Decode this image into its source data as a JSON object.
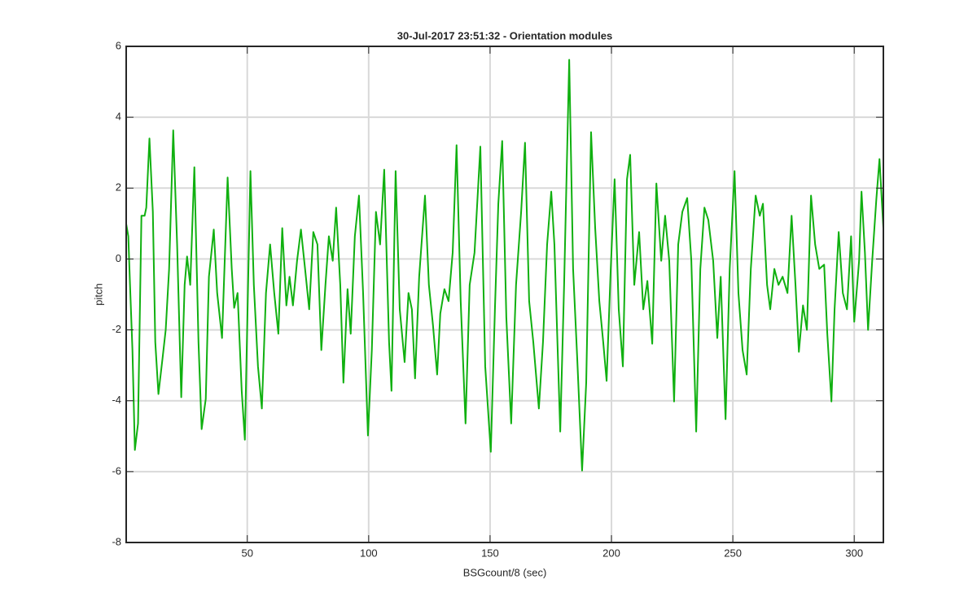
{
  "chart_data": {
    "type": "line",
    "title": "30-Jul-2017 23:51:32 - Orientation modules",
    "x_label": "BSGcount/8 (sec)",
    "y_label": "pitch",
    "xlim": [
      0.125,
      312
    ],
    "ylim": [
      -8,
      6
    ],
    "xticks": [
      50,
      100,
      150,
      200,
      250,
      300
    ],
    "yticks": [
      -8,
      -6,
      -4,
      -2,
      0,
      2,
      4,
      6
    ],
    "grid": true,
    "series": [
      {
        "name": "pitch",
        "color": "#10b010",
        "x": [
          0.125,
          1.0,
          1.7,
          2.7,
          3.7,
          5.0,
          6.4,
          7.7,
          8.4,
          9.7,
          11.1,
          12.1,
          13.4,
          15.1,
          16.4,
          17.8,
          19.5,
          21.1,
          22.8,
          24.2,
          25.2,
          26.5,
          28.2,
          29.9,
          31.2,
          32.9,
          34.2,
          36.2,
          37.6,
          39.6,
          41.9,
          43.6,
          44.6,
          46.0,
          47.7,
          49.0,
          51.3,
          52.7,
          54.4,
          56.0,
          57.7,
          59.4,
          61.1,
          62.8,
          64.4,
          66.1,
          67.4,
          68.8,
          70.5,
          72.1,
          73.8,
          75.5,
          77.2,
          78.9,
          80.5,
          82.2,
          83.6,
          85.2,
          86.6,
          88.3,
          89.6,
          91.3,
          92.6,
          94.3,
          96.0,
          97.7,
          99.7,
          101.3,
          103.0,
          104.7,
          106.4,
          108.4,
          109.4,
          111.1,
          112.8,
          114.8,
          116.4,
          117.8,
          119.1,
          120.8,
          123.2,
          124.8,
          126.5,
          128.2,
          129.5,
          131.2,
          132.9,
          134.6,
          136.2,
          137.9,
          139.9,
          141.6,
          143.6,
          146.0,
          148.0,
          150.3,
          152.0,
          153.4,
          155.0,
          156.7,
          158.7,
          160.7,
          162.8,
          164.4,
          166.1,
          167.8,
          170.1,
          171.8,
          173.5,
          175.2,
          176.5,
          178.9,
          180.5,
          182.6,
          184.2,
          185.9,
          187.9,
          189.6,
          191.6,
          193.3,
          195.0,
          196.6,
          198.0,
          199.7,
          201.3,
          203.0,
          204.7,
          206.4,
          207.7,
          209.4,
          211.4,
          213.1,
          214.8,
          216.8,
          218.5,
          220.5,
          222.1,
          223.8,
          225.8,
          227.5,
          229.2,
          231.2,
          232.9,
          234.9,
          236.6,
          238.3,
          239.9,
          241.9,
          243.6,
          245.0,
          247.0,
          248.7,
          250.7,
          252.3,
          254.0,
          255.7,
          257.4,
          259.4,
          261.1,
          262.4,
          264.1,
          265.4,
          267.1,
          268.8,
          270.5,
          272.5,
          274.2,
          275.8,
          277.2,
          278.9,
          280.5,
          282.2,
          283.9,
          285.6,
          287.6,
          288.9,
          290.6,
          291.9,
          293.6,
          295.3,
          297.0,
          298.7,
          300.0,
          302.0,
          303.0,
          304.4,
          305.7,
          307.4,
          309.1,
          310.4,
          312.0
        ],
        "values": [
          0.99,
          0.64,
          -0.73,
          -2.57,
          -5.39,
          -4.64,
          1.22,
          1.22,
          1.45,
          3.4,
          1.33,
          -2.34,
          -3.81,
          -2.8,
          -2.0,
          -0.28,
          3.63,
          0.41,
          -3.9,
          -0.73,
          0.07,
          -0.73,
          2.59,
          -2.34,
          -4.8,
          -3.95,
          -0.5,
          0.83,
          -0.96,
          -2.23,
          2.3,
          -0.28,
          -1.38,
          -0.96,
          -3.72,
          -5.1,
          2.48,
          -0.73,
          -3.03,
          -4.22,
          -0.96,
          0.41,
          -0.96,
          -2.11,
          0.87,
          -1.31,
          -0.5,
          -1.31,
          -0.05,
          0.83,
          -0.28,
          -1.42,
          0.76,
          0.41,
          -2.57,
          -0.73,
          0.64,
          -0.05,
          1.45,
          -0.73,
          -3.49,
          -0.85,
          -2.11,
          0.64,
          1.79,
          -0.96,
          -4.98,
          -2.57,
          1.33,
          0.41,
          2.52,
          -2.34,
          -3.72,
          2.48,
          -1.42,
          -2.91,
          -0.96,
          -1.42,
          -3.37,
          -0.5,
          1.79,
          -0.73,
          -1.88,
          -3.26,
          -1.54,
          -0.85,
          -1.19,
          0.18,
          3.21,
          -1.19,
          -4.64,
          -0.73,
          0.18,
          3.17,
          -3.03,
          -5.44,
          -1.42,
          1.56,
          3.33,
          -1.65,
          -4.64,
          -0.73,
          1.33,
          3.28,
          -1.19,
          -2.34,
          -4.22,
          -2.34,
          0.41,
          1.9,
          0.41,
          -4.87,
          -0.73,
          5.62,
          -0.28,
          -2.8,
          -5.97,
          -3.49,
          3.58,
          0.87,
          -1.19,
          -2.34,
          -3.44,
          -0.28,
          2.25,
          -1.42,
          -3.03,
          2.25,
          2.94,
          -0.73,
          0.76,
          -1.42,
          -0.62,
          -2.39,
          2.13,
          -0.05,
          1.22,
          -0.05,
          -4.02,
          0.41,
          1.33,
          1.72,
          -0.05,
          -4.87,
          -0.28,
          1.45,
          1.1,
          -0.05,
          -2.23,
          -0.5,
          -4.52,
          -0.28,
          2.48,
          -0.96,
          -2.57,
          -3.26,
          -0.28,
          1.79,
          1.22,
          1.56,
          -0.73,
          -1.42,
          -0.28,
          -0.73,
          -0.5,
          -0.96,
          1.22,
          -0.73,
          -2.62,
          -1.31,
          -2.0,
          1.79,
          0.41,
          -0.28,
          -0.16,
          -2.11,
          -4.02,
          -1.42,
          0.76,
          -0.96,
          -1.42,
          0.64,
          -1.77,
          -0.05,
          1.9,
          0.18,
          -2.0,
          -0.05,
          1.68,
          2.82,
          0.87
        ]
      }
    ]
  }
}
